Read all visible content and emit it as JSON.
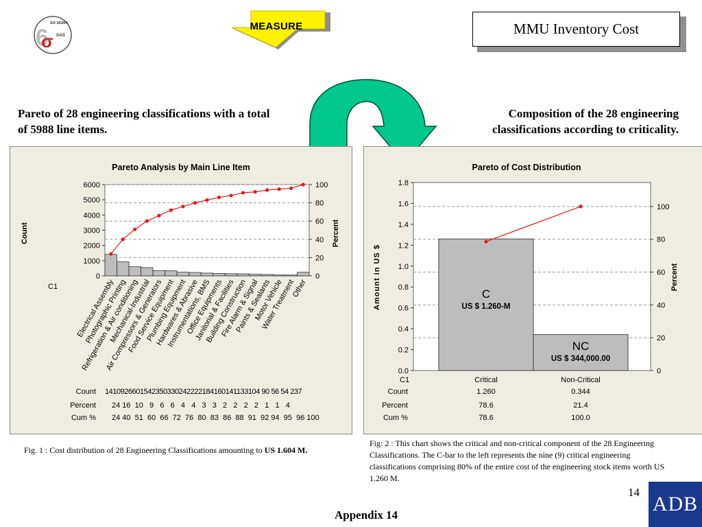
{
  "slide": {
    "logo_text": "SIX SIGMA OAS",
    "logo_symbol": "σ",
    "logo_digit": "6",
    "measure_label": "MEASURE",
    "title": "MMU Inventory Cost",
    "left_subtitle": "Pareto of 28 engineering classifications with a total of 5988 line items.",
    "right_subtitle": "Composition of the 28 engineering classifications according to criticality.",
    "caption1_prefix": "Fig. 1 :  Cost distribution of 28 Engineering Classifications amounting to",
    "caption1_bold": "US 1.604 M.",
    "caption2": "Fig: 2 :  This chart shows the critical and non-critical component of the 28 Engineering Classifications.  The C-bar to the left represents the nine (9) critical engineering classifications comprising 80% of the entire cost of the engineering stock items worth US 1.260 M.",
    "page_number": "14",
    "appendix": "Appendix 14",
    "adb_logo": "ADB",
    "colors": {
      "banner": "#fff200",
      "arrow": "#00c88c",
      "panel": "#efede2",
      "bar": "#bdbdbd",
      "line": "#e8191b",
      "adb": "#1a3a8e"
    }
  },
  "chart_data": [
    {
      "type": "bar",
      "title": "Pareto Analysis by Main Line Item",
      "ylabel": "Count",
      "y2label": "Percent",
      "xlabel": "C1",
      "ylim": [
        0,
        6000
      ],
      "y2lim": [
        0,
        100
      ],
      "yticks": [
        "0",
        "1000",
        "2000",
        "3000",
        "4000",
        "5000",
        "6000"
      ],
      "y2ticks": [
        "0",
        "20",
        "40",
        "60",
        "80",
        "100"
      ],
      "categories": [
        "Electrical Assembly",
        "Photographic Printing",
        "Refrigeration & Air conditioning",
        "Mechanical-Industrial",
        "Air Compressors & Generators",
        "Food Service Equipment",
        "Plumbing Equipment",
        "Hardwares & Abrasive",
        "Instrumentations, BMS",
        "Office Equipments",
        "Janitorial & Facilities",
        "Building Construction",
        "Fire Alarm & Signal",
        "Paints & Sealants",
        "Motor Vehicle",
        "Water Treatment",
        "Other"
      ],
      "count": [
        1410,
        926,
        601,
        542,
        350,
        330,
        242,
        222,
        184,
        160,
        141,
        133,
        104,
        90,
        56,
        54,
        237
      ],
      "percent": [
        24,
        16,
        10,
        9,
        6,
        6,
        4,
        4,
        3,
        3,
        2,
        2,
        2,
        2,
        1,
        1,
        4
      ],
      "cum_percent": [
        24,
        40,
        51,
        60,
        66,
        72,
        76,
        80,
        83,
        86,
        88,
        91,
        92,
        94,
        95,
        96,
        100
      ],
      "table_labels": [
        "Count",
        "Percent",
        "Cum %"
      ],
      "count_row_text": "1410926601542350330242222184160141133104 90  56  54 237",
      "percent_row_text": "24 16  10   9   6   6   4   4   3   3   2   2   2   2   1   1   4",
      "cum_row_text": "24 40  51  60  66  72  76  80  83  86  88  91  92 94  95  96 100"
    },
    {
      "type": "bar",
      "title": "Pareto of Cost Distribution",
      "ylabel": "Amount in US $",
      "y2label": "Percent",
      "xlabel": "C1",
      "ylim": [
        0,
        1.8
      ],
      "y2lim": [
        0,
        114.6
      ],
      "yticks": [
        "0.0",
        "0.2",
        "0.4",
        "0.6",
        "0.8",
        "1.0",
        "1.2",
        "1.4",
        "1.6",
        "1.8"
      ],
      "y2ticks": [
        "0",
        "20",
        "40",
        "60",
        "80",
        "100"
      ],
      "categories": [
        "Critical",
        "Non-Critical"
      ],
      "values": [
        1.26,
        0.344
      ],
      "count_text": [
        "1.260",
        "0.344"
      ],
      "percent": [
        78.6,
        21.4
      ],
      "percent_text": [
        "78.6",
        "21.4"
      ],
      "cum_percent": [
        78.6,
        100.0
      ],
      "cum_text": [
        "78.6",
        "100.0"
      ],
      "bar_labels": [
        {
          "code": "C",
          "amount": "US $ 1.260-M"
        },
        {
          "code": "NC",
          "amount": "US $ 344,000.00"
        }
      ],
      "table_labels": [
        "Count",
        "Percent",
        "Cum %"
      ]
    }
  ]
}
